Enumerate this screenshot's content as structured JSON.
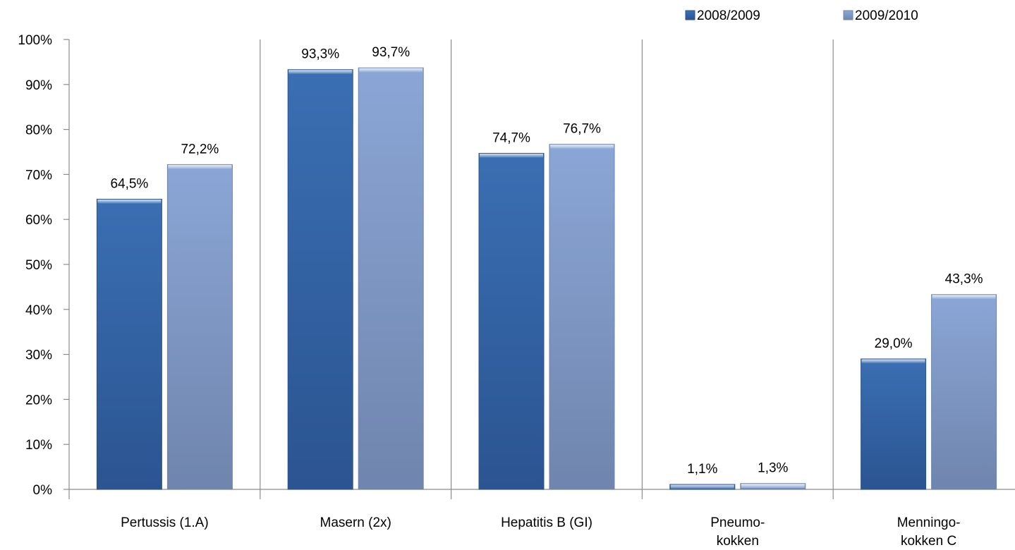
{
  "chart_data": {
    "type": "bar",
    "categories": [
      [
        "Pertussis (1.A)"
      ],
      [
        "Masern (2x)"
      ],
      [
        "Hepatitis B (GI)"
      ],
      [
        "Pneumo-",
        "kokken"
      ],
      [
        "Menningo-",
        "kokken C"
      ]
    ],
    "series": [
      {
        "name": "2008/2009",
        "values": [
          64.5,
          93.3,
          74.7,
          1.1,
          29.0
        ],
        "labels": [
          "64,5%",
          "93,3%",
          "74,7%",
          "1,1%",
          "29,0%"
        ],
        "color": "#3a6fb3",
        "color_dark": "#2b5491"
      },
      {
        "name": "2009/2010",
        "values": [
          72.2,
          93.7,
          76.7,
          1.3,
          43.3
        ],
        "labels": [
          "72,2%",
          "93,7%",
          "76,7%",
          "1,3%",
          "43,3%"
        ],
        "color": "#8ba6d6",
        "color_dark": "#6f85ad"
      }
    ],
    "y_ticks": [
      "0%",
      "10%",
      "20%",
      "30%",
      "40%",
      "50%",
      "60%",
      "70%",
      "80%",
      "90%",
      "100%"
    ],
    "ylim": [
      0,
      100
    ],
    "grid": false,
    "legend_position": "top-right",
    "title": "",
    "xlabel": "",
    "ylabel": ""
  }
}
